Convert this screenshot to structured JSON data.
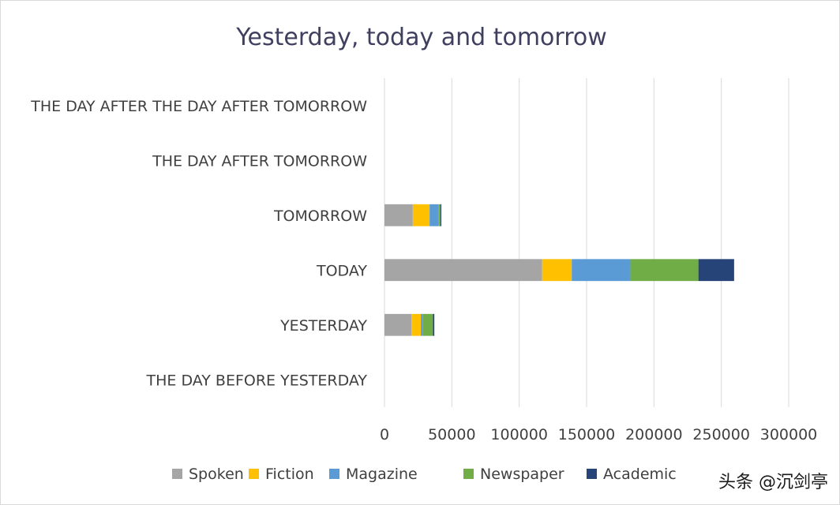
{
  "chart_data": {
    "type": "bar",
    "orientation": "horizontal",
    "stacked": true,
    "title": "Yesterday, today and tomorrow",
    "xlabel": "",
    "ylabel": "",
    "xlim": [
      0,
      300000
    ],
    "x_ticks": [
      "0",
      "50000",
      "100000",
      "150000",
      "200000",
      "250000",
      "300000"
    ],
    "grid": "vertical",
    "legend_position": "bottom",
    "categories": [
      "THE DAY BEFORE YESTERDAY",
      "YESTERDAY",
      "TODAY",
      "TOMORROW",
      "THE DAY AFTER TOMORROW",
      "THE DAY AFTER THE DAY AFTER TOMORROW"
    ],
    "series": [
      {
        "name": "Spoken",
        "color": "#a5a5a5",
        "values": [
          0,
          20000,
          117000,
          21000,
          0,
          0
        ]
      },
      {
        "name": "Fiction",
        "color": "#ffc000",
        "values": [
          0,
          7000,
          22000,
          12500,
          0,
          0
        ]
      },
      {
        "name": "Magazine",
        "color": "#5b9bd5",
        "values": [
          0,
          1500,
          43500,
          6500,
          0,
          0
        ]
      },
      {
        "name": "Newspaper",
        "color": "#70ad47",
        "values": [
          0,
          7500,
          50500,
          1500,
          0,
          0
        ]
      },
      {
        "name": "Academic",
        "color": "#264478",
        "values": [
          0,
          1000,
          26500,
          700,
          0,
          0
        ]
      }
    ]
  },
  "watermark": "头条 @沉剑亭"
}
